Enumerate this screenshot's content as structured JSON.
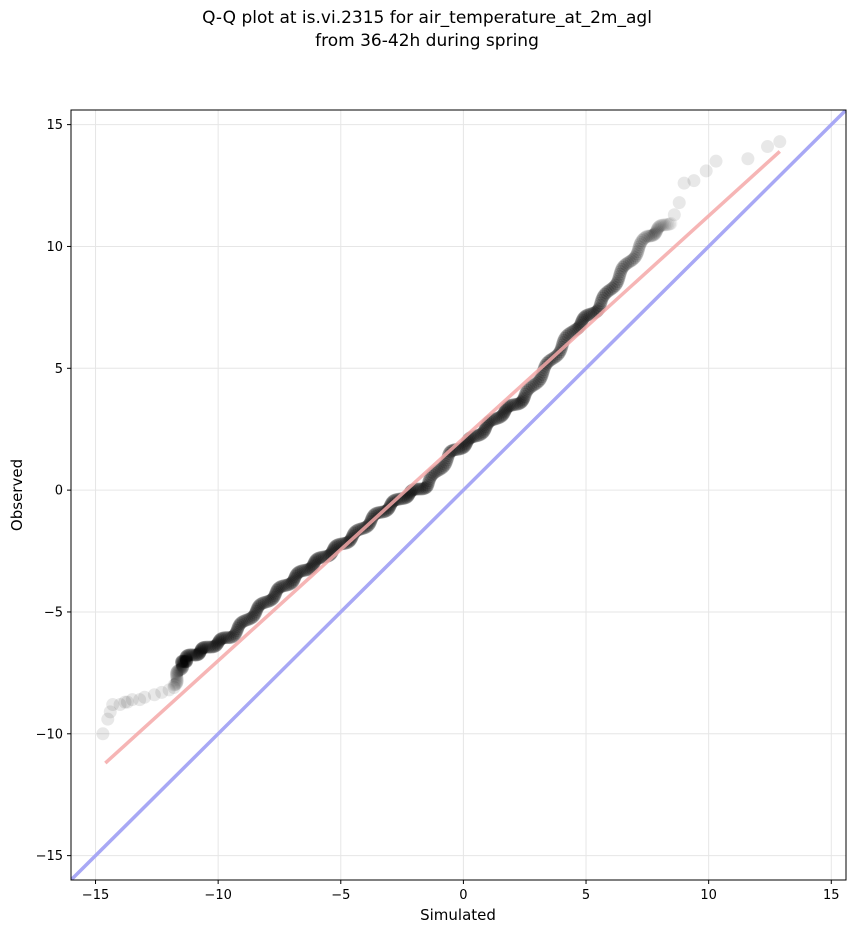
{
  "chart_data": {
    "type": "scatter",
    "title_line1": "Q-Q plot at is.vi.2315 for air_temperature_at_2m_agl",
    "title_line2": "from 36-42h during spring",
    "xlabel": "Simulated",
    "ylabel": "Observed",
    "xlim": [
      -16.0,
      15.6
    ],
    "ylim": [
      -16.0,
      15.6
    ],
    "xticks": [
      -15,
      -10,
      -5,
      0,
      5,
      10,
      15
    ],
    "yticks": [
      -15,
      -10,
      -5,
      0,
      5,
      10,
      15
    ],
    "xtick_labels": [
      "−15",
      "−10",
      "−5",
      "0",
      "5",
      "10",
      "15"
    ],
    "ytick_labels": [
      "−15",
      "−10",
      "−5",
      "0",
      "5",
      "10",
      "15"
    ],
    "grid": true,
    "lines": {
      "identity": {
        "color": "#a8a8f5",
        "x": [
          -16.0,
          15.6
        ],
        "y": [
          -16.0,
          15.6
        ]
      },
      "fit": {
        "color": "#f5a8a8",
        "x": [
          -14.6,
          12.9
        ],
        "y": [
          -11.2,
          13.9
        ]
      }
    },
    "points_color": "#000000",
    "outlier_points": {
      "x": [
        -14.7,
        -14.5,
        -14.4,
        -14.3,
        -14.0,
        -13.8,
        -13.7,
        -13.5,
        -13.2,
        -13.0,
        -12.6,
        -12.3,
        -12.0,
        -11.8,
        8.6,
        8.8,
        9.0,
        9.4,
        9.9,
        10.3,
        11.6,
        12.4,
        12.9
      ],
      "y": [
        -10.0,
        -9.4,
        -9.1,
        -8.8,
        -8.8,
        -8.7,
        -8.7,
        -8.6,
        -8.6,
        -8.5,
        -8.4,
        -8.3,
        -8.2,
        -8.1,
        11.3,
        11.8,
        12.6,
        12.7,
        13.1,
        13.5,
        13.6,
        14.1,
        14.3
      ]
    },
    "dense_curve": {
      "x": [
        -11.8,
        -11.5,
        -11.3,
        -10.5,
        -9.5,
        -8.5,
        -7.5,
        -6.5,
        -5.5,
        -4.5,
        -3.5,
        -2.5,
        -1.5,
        -0.5,
        0.5,
        1.5,
        2.5,
        3.5,
        4.5,
        5.5,
        6.5,
        7.5,
        8.4
      ],
      "y": [
        -8.0,
        -7.2,
        -6.9,
        -6.5,
        -6.0,
        -5.0,
        -4.1,
        -3.3,
        -2.6,
        -1.9,
        -1.0,
        -0.3,
        0.2,
        1.5,
        2.2,
        3.1,
        3.8,
        5.2,
        6.6,
        7.5,
        9.0,
        10.4,
        11.0
      ]
    },
    "dense_count": 420
  }
}
